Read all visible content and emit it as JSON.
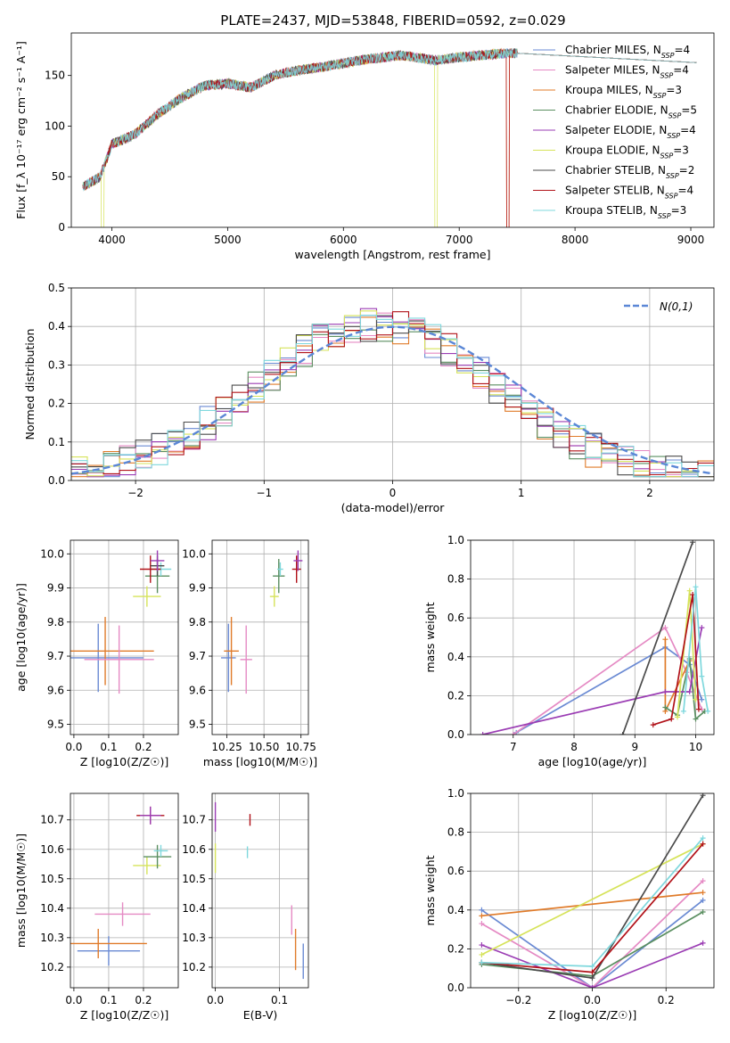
{
  "series_names": [
    "Chabrier MILES",
    "Salpeter MILES",
    "Kroupa MILES",
    "Chabrier ELODIE",
    "Salpeter ELODIE",
    "Kroupa ELODIE",
    "Chabrier STELIB",
    "Salpeter STELIB",
    "Kroupa STELIB"
  ],
  "nssp": [
    4,
    4,
    3,
    5,
    4,
    3,
    2,
    4,
    3
  ],
  "colors": [
    "#6a8ad3",
    "#e58ac4",
    "#e07b2a",
    "#5b8f61",
    "#9b3db4",
    "#d6e35a",
    "#4b4b4b",
    "#b11219",
    "#7fd8dd"
  ],
  "chart_data": [
    {
      "type": "line",
      "title": "PLATE=2437, MJD=53848, FIBERID=0592, z=0.029",
      "xlabel": "wavelength [Angstrom, rest frame]",
      "ylabel": "Flux [f_λ 10⁻¹⁷ erg cm⁻² s⁻¹ A⁻¹]",
      "xlim": [
        3650,
        9200
      ],
      "ylim": [
        0,
        192
      ],
      "xticks": [
        4000,
        5000,
        6000,
        7000,
        8000,
        9000
      ],
      "yticks": [
        0,
        50,
        100,
        150
      ],
      "legend": "right",
      "approx_continuum": [
        [
          3750,
          40
        ],
        [
          3900,
          50
        ],
        [
          4000,
          82
        ],
        [
          4200,
          92
        ],
        [
          4400,
          112
        ],
        [
          4600,
          128
        ],
        [
          4800,
          140
        ],
        [
          5000,
          142
        ],
        [
          5200,
          138
        ],
        [
          5400,
          150
        ],
        [
          5600,
          155
        ],
        [
          5800,
          158
        ],
        [
          6000,
          162
        ],
        [
          6200,
          166
        ],
        [
          6500,
          170
        ],
        [
          6800,
          165
        ],
        [
          7000,
          168
        ],
        [
          7200,
          170
        ],
        [
          7400,
          172
        ]
      ],
      "cutoffs": [
        {
          "series": "Kroupa ELODIE",
          "x": 6800
        },
        {
          "series": "Kroupa MILES",
          "x": 7420
        },
        {
          "series": "Salpeter STELIB",
          "x": 7420
        },
        {
          "series": "Kroupa ELODIE",
          "x": 3920
        }
      ]
    },
    {
      "type": "histogram",
      "xlabel": "(data-model)/error",
      "ylabel": "Normed distribution",
      "xlim": [
        -2.5,
        2.5
      ],
      "ylim": [
        0,
        0.5
      ],
      "xticks": [
        -2,
        -1,
        0,
        1,
        2
      ],
      "yticks": [
        0.0,
        0.1,
        0.2,
        0.3,
        0.4,
        0.5
      ],
      "legend": "top-right",
      "legend_label": "N(0,1)",
      "reference_curve": "standard normal"
    },
    {
      "type": "scatter",
      "xlabel": "Z [log10(Z/Z☉)]",
      "ylabel": "age [log10(age/yr)]",
      "xlim": [
        -0.01,
        0.3
      ],
      "ylim": [
        9.47,
        10.04
      ],
      "xticks": [
        0.0,
        0.1,
        0.2
      ],
      "yticks": [
        9.5,
        9.6,
        9.7,
        9.8,
        9.9,
        10.0
      ],
      "points": [
        {
          "series": "Chabrier MILES",
          "x": 0.07,
          "xerr": 0.13,
          "y": 9.695,
          "yerr": 0.1
        },
        {
          "series": "Kroupa MILES",
          "x": 0.09,
          "xerr": 0.14,
          "y": 9.715,
          "yerr": 0.1
        },
        {
          "series": "Salpeter MILES",
          "x": 0.13,
          "xerr": 0.1,
          "y": 9.69,
          "yerr": 0.1
        },
        {
          "series": "Kroupa ELODIE",
          "x": 0.21,
          "xerr": 0.04,
          "y": 9.875,
          "yerr": 0.03
        },
        {
          "series": "Chabrier ELODIE",
          "x": 0.24,
          "xerr": 0.035,
          "y": 9.935,
          "yerr": 0.05
        },
        {
          "series": "Kroupa STELIB",
          "x": 0.25,
          "xerr": 0.03,
          "y": 9.955,
          "yerr": 0.02
        },
        {
          "series": "Salpeter STELIB",
          "x": 0.22,
          "xerr": 0.03,
          "y": 9.955,
          "yerr": 0.04
        },
        {
          "series": "Chabrier STELIB",
          "x": 0.24,
          "xerr": 0.02,
          "y": 9.965,
          "yerr": 0.03
        },
        {
          "series": "Salpeter ELODIE",
          "x": 0.24,
          "xerr": 0.02,
          "y": 9.98,
          "yerr": 0.03
        }
      ]
    },
    {
      "type": "scatter",
      "xlabel": "mass [log10(M/M☉)]",
      "ylabel": "",
      "xlim": [
        10.15,
        10.8
      ],
      "ylim": [
        9.47,
        10.04
      ],
      "xticks": [
        10.25,
        10.5,
        10.75
      ],
      "yticks": [
        9.5,
        9.6,
        9.7,
        9.8,
        9.9,
        10.0
      ],
      "points": [
        {
          "series": "Chabrier MILES",
          "x": 10.26,
          "xerr": 0.05,
          "y": 9.695,
          "yerr": 0.1
        },
        {
          "series": "Kroupa MILES",
          "x": 10.28,
          "xerr": 0.05,
          "y": 9.715,
          "yerr": 0.1
        },
        {
          "series": "Salpeter MILES",
          "x": 10.38,
          "xerr": 0.04,
          "y": 9.69,
          "yerr": 0.1
        },
        {
          "series": "Kroupa ELODIE",
          "x": 10.57,
          "xerr": 0.03,
          "y": 9.875,
          "yerr": 0.03
        },
        {
          "series": "Chabrier ELODIE",
          "x": 10.6,
          "xerr": 0.04,
          "y": 9.935,
          "yerr": 0.05
        },
        {
          "series": "Kroupa STELIB",
          "x": 10.61,
          "xerr": 0.02,
          "y": 9.955,
          "yerr": 0.02
        },
        {
          "series": "Salpeter STELIB",
          "x": 10.72,
          "xerr": 0.03,
          "y": 9.955,
          "yerr": 0.04
        },
        {
          "series": "Salpeter ELODIE",
          "x": 10.73,
          "xerr": 0.03,
          "y": 9.98,
          "yerr": 0.03
        }
      ]
    },
    {
      "type": "line",
      "xlabel": "age [log10(age/yr)]",
      "ylabel": "mass weight",
      "xlim": [
        6.3,
        10.3
      ],
      "ylim": [
        0,
        1.0
      ],
      "xticks": [
        7,
        8,
        9,
        10
      ],
      "yticks": [
        0.0,
        0.2,
        0.4,
        0.6,
        0.8,
        1.0
      ],
      "series": [
        {
          "name": "Chabrier MILES",
          "x": [
            7.05,
            9.5,
            9.9,
            10.1
          ],
          "y": [
            0.01,
            0.45,
            0.36,
            0.18
          ]
        },
        {
          "name": "Salpeter MILES",
          "x": [
            7.0,
            9.5,
            9.85,
            10.1
          ],
          "y": [
            0.0,
            0.55,
            0.32,
            0.13
          ]
        },
        {
          "name": "Kroupa MILES",
          "x": [
            9.5,
            9.5,
            9.9
          ],
          "y": [
            0.49,
            0.12,
            0.38
          ]
        },
        {
          "name": "Chabrier ELODIE",
          "x": [
            9.5,
            9.7,
            9.9,
            10.0,
            10.15
          ],
          "y": [
            0.14,
            0.1,
            0.39,
            0.08,
            0.12
          ]
        },
        {
          "name": "Salpeter ELODIE",
          "x": [
            6.5,
            9.5,
            9.9,
            10.1
          ],
          "y": [
            0.0,
            0.22,
            0.22,
            0.55
          ]
        },
        {
          "name": "Kroupa ELODIE",
          "x": [
            9.7,
            9.9,
            10.0
          ],
          "y": [
            0.09,
            0.74,
            0.18
          ]
        },
        {
          "name": "Chabrier STELIB",
          "x": [
            8.8,
            9.95
          ],
          "y": [
            0.0,
            0.99
          ]
        },
        {
          "name": "Salpeter STELIB",
          "x": [
            9.3,
            9.6,
            9.95,
            10.05
          ],
          "y": [
            0.05,
            0.08,
            0.72,
            0.13
          ]
        },
        {
          "name": "Kroupa STELIB",
          "x": [
            9.8,
            10.0,
            10.1,
            10.2
          ],
          "y": [
            0.12,
            0.76,
            0.3,
            0.12
          ]
        }
      ]
    },
    {
      "type": "scatter",
      "xlabel": "Z [log10(Z/Z☉)]",
      "ylabel": "mass [log10(M/M☉)]",
      "xlim": [
        -0.01,
        0.3
      ],
      "ylim": [
        10.13,
        10.79
      ],
      "xticks": [
        0.0,
        0.1,
        0.2
      ],
      "yticks": [
        10.2,
        10.3,
        10.4,
        10.5,
        10.6,
        10.7
      ],
      "points": [
        {
          "series": "Chabrier MILES",
          "x": 0.1,
          "xerr": 0.09,
          "y": 10.255,
          "yerr": 0.05
        },
        {
          "series": "Kroupa MILES",
          "x": 0.07,
          "xerr": 0.14,
          "y": 10.28,
          "yerr": 0.05
        },
        {
          "series": "Salpeter MILES",
          "x": 0.14,
          "xerr": 0.08,
          "y": 10.38,
          "yerr": 0.04
        },
        {
          "series": "Kroupa ELODIE",
          "x": 0.21,
          "xerr": 0.04,
          "y": 10.545,
          "yerr": 0.03
        },
        {
          "series": "Chabrier ELODIE",
          "x": 0.24,
          "xerr": 0.04,
          "y": 10.575,
          "yerr": 0.04
        },
        {
          "series": "Kroupa STELIB",
          "x": 0.25,
          "xerr": 0.02,
          "y": 10.595,
          "yerr": 0.02
        },
        {
          "series": "Salpeter STELIB",
          "x": 0.22,
          "xerr": 0.04,
          "y": 10.715,
          "yerr": 0.03
        },
        {
          "series": "Salpeter ELODIE",
          "x": 0.22,
          "xerr": 0.03,
          "y": 10.715,
          "yerr": 0.03
        }
      ]
    },
    {
      "type": "scatter",
      "xlabel": "E(B-V)",
      "ylabel": "",
      "xlim": [
        -0.005,
        0.145
      ],
      "ylim": [
        10.13,
        10.79
      ],
      "xticks": [
        0.0,
        0.1
      ],
      "yticks": [
        10.2,
        10.3,
        10.4,
        10.5,
        10.6,
        10.7
      ],
      "points": [
        {
          "series": "Chabrier MILES",
          "x": 0.137,
          "y": 10.22,
          "yerr": 0.06
        },
        {
          "series": "Kroupa MILES",
          "x": 0.125,
          "y": 10.26,
          "yerr": 0.07
        },
        {
          "series": "Salpeter MILES",
          "x": 0.119,
          "y": 10.36,
          "yerr": 0.05
        },
        {
          "series": "Kroupa ELODIE",
          "x": 0.0,
          "y": 10.57,
          "yerr": 0.05
        },
        {
          "series": "Salpeter ELODIE",
          "x": 0.0,
          "y": 10.71,
          "yerr": 0.05
        },
        {
          "series": "Kroupa STELIB",
          "x": 0.05,
          "y": 10.59,
          "yerr": 0.02
        },
        {
          "series": "Salpeter STELIB",
          "x": 0.054,
          "y": 10.7,
          "yerr": 0.02
        }
      ]
    },
    {
      "type": "line",
      "xlabel": "Z [log10(Z/Z☉)]",
      "ylabel": "mass weight",
      "xlim": [
        -0.33,
        0.33
      ],
      "ylim": [
        0,
        1.0
      ],
      "xticks": [
        -0.2,
        0.0,
        0.2
      ],
      "yticks": [
        0.0,
        0.2,
        0.4,
        0.6,
        0.8,
        1.0
      ],
      "series": [
        {
          "name": "Chabrier MILES",
          "x": [
            -0.3,
            0.0,
            0.3
          ],
          "y": [
            0.4,
            0.0,
            0.45
          ]
        },
        {
          "name": "Salpeter MILES",
          "x": [
            -0.3,
            0.0,
            0.3
          ],
          "y": [
            0.33,
            0.0,
            0.55
          ]
        },
        {
          "name": "Kroupa MILES",
          "x": [
            -0.3,
            0.3
          ],
          "y": [
            0.37,
            0.49
          ]
        },
        {
          "name": "Chabrier ELODIE",
          "x": [
            -0.3,
            0.0,
            0.3
          ],
          "y": [
            0.12,
            0.06,
            0.39
          ]
        },
        {
          "name": "Salpeter ELODIE",
          "x": [
            -0.3,
            0.0,
            0.3
          ],
          "y": [
            0.22,
            0.0,
            0.23
          ]
        },
        {
          "name": "Kroupa ELODIE",
          "x": [
            -0.3,
            0.3
          ],
          "y": [
            0.17,
            0.74
          ]
        },
        {
          "name": "Chabrier STELIB",
          "x": [
            -0.3,
            0.0,
            0.3
          ],
          "y": [
            0.13,
            0.05,
            0.99
          ]
        },
        {
          "name": "Salpeter STELIB",
          "x": [
            -0.3,
            0.0,
            0.3
          ],
          "y": [
            0.13,
            0.08,
            0.74
          ]
        },
        {
          "name": "Kroupa STELIB",
          "x": [
            -0.3,
            0.0,
            0.3
          ],
          "y": [
            0.13,
            0.11,
            0.77
          ]
        }
      ]
    }
  ]
}
